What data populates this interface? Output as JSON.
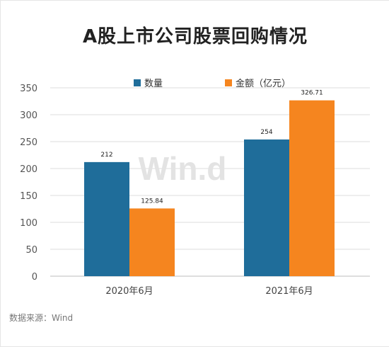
{
  "title": "A股上市公司股票回购情况",
  "source": "数据来源：Wind",
  "watermark": "Win.d",
  "chart_data": {
    "type": "bar",
    "title": "A股上市公司股票回购情况",
    "categories": [
      "2020年6月",
      "2021年6月"
    ],
    "series": [
      {
        "name": "数量",
        "values": [
          212,
          254
        ],
        "labels": [
          "212",
          "254"
        ],
        "color": "#1f6d9a"
      },
      {
        "name": "金额（亿元）",
        "values": [
          125.84,
          326.71
        ],
        "labels": [
          "125.84",
          "326.71"
        ],
        "color": "#f5851f"
      }
    ],
    "ylim": [
      0,
      350
    ],
    "yticks": [
      0,
      50,
      100,
      150,
      200,
      250,
      300,
      350
    ],
    "xlabel": "",
    "ylabel": "",
    "grid": true,
    "legend": "top-center"
  }
}
